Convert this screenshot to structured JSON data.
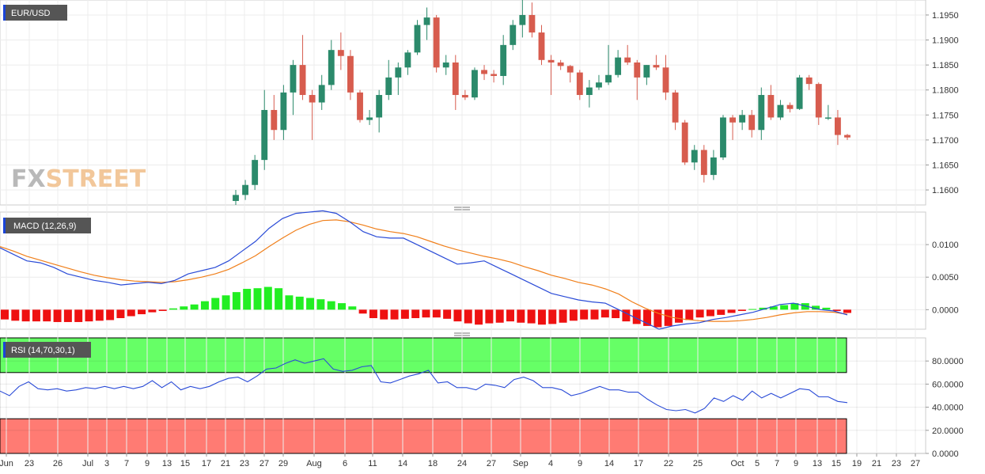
{
  "colors": {
    "up": "#2b8a6b",
    "down": "#d75c4e",
    "macd_line": "#2a4bd7",
    "signal_line": "#f07f1a",
    "hist_pos": "#22ee22",
    "hist_neg": "#ee1111",
    "rsi_line": "#2a4bd7",
    "rsi_overbought": "#66ff66",
    "rsi_oversold": "#ff7b73",
    "tag_bg": "#555555",
    "tag_accent": "#1a44d8"
  },
  "watermark": {
    "part1": "FX",
    "part2": "STREET"
  },
  "chart_data": [
    {
      "type": "candlestick",
      "title": "EUR/USD",
      "ylim": [
        1.157,
        1.198
      ],
      "yticks": [
        1.195,
        1.19,
        1.185,
        1.18,
        1.175,
        1.17,
        1.165,
        1.16
      ],
      "ytick_labels": [
        "1.1950",
        "1.1900",
        "1.1850",
        "1.1800",
        "1.1750",
        "1.1700",
        "1.1650",
        "1.1600"
      ],
      "grid": true,
      "ohlc": [
        [
          1.1578,
          1.16,
          1.157,
          1.159
        ],
        [
          1.159,
          1.162,
          1.158,
          1.161
        ],
        [
          1.161,
          1.167,
          1.16,
          1.166
        ],
        [
          1.166,
          1.18,
          1.164,
          1.176
        ],
        [
          1.176,
          1.179,
          1.17,
          1.172
        ],
        [
          1.172,
          1.181,
          1.17,
          1.1795
        ],
        [
          1.1795,
          1.186,
          1.175,
          1.185
        ],
        [
          1.185,
          1.191,
          1.178,
          1.179
        ],
        [
          1.179,
          1.18,
          1.17,
          1.1775
        ],
        [
          1.1775,
          1.183,
          1.176,
          1.181
        ],
        [
          1.181,
          1.19,
          1.18,
          1.188
        ],
        [
          1.188,
          1.1915,
          1.184,
          1.1868
        ],
        [
          1.1868,
          1.188,
          1.178,
          1.1795
        ],
        [
          1.1795,
          1.18,
          1.1735,
          1.174
        ],
        [
          1.174,
          1.176,
          1.173,
          1.1745
        ],
        [
          1.1745,
          1.18,
          1.1715,
          1.179
        ],
        [
          1.179,
          1.186,
          1.178,
          1.1825
        ],
        [
          1.1825,
          1.1855,
          1.179,
          1.1845
        ],
        [
          1.1845,
          1.188,
          1.183,
          1.1875
        ],
        [
          1.1875,
          1.194,
          1.187,
          1.193
        ],
        [
          1.193,
          1.1965,
          1.19,
          1.1945
        ],
        [
          1.1945,
          1.195,
          1.1835,
          1.1845
        ],
        [
          1.1845,
          1.187,
          1.183,
          1.1855
        ],
        [
          1.1855,
          1.187,
          1.176,
          1.179
        ],
        [
          1.179,
          1.18,
          1.178,
          1.1785
        ],
        [
          1.1785,
          1.1845,
          1.178,
          1.184
        ],
        [
          1.184,
          1.185,
          1.182,
          1.1832
        ],
        [
          1.1832,
          1.184,
          1.1815,
          1.1828
        ],
        [
          1.1828,
          1.191,
          1.181,
          1.189
        ],
        [
          1.189,
          1.194,
          1.188,
          1.193
        ],
        [
          1.193,
          1.198,
          1.1905,
          1.195
        ],
        [
          1.195,
          1.1975,
          1.1905,
          1.1915
        ],
        [
          1.1915,
          1.193,
          1.185,
          1.186
        ],
        [
          1.186,
          1.187,
          1.179,
          1.1855
        ],
        [
          1.1855,
          1.186,
          1.184,
          1.1848
        ],
        [
          1.1848,
          1.185,
          1.1815,
          1.1835
        ],
        [
          1.1835,
          1.184,
          1.178,
          1.179
        ],
        [
          1.179,
          1.182,
          1.1765,
          1.1805
        ],
        [
          1.1805,
          1.183,
          1.18,
          1.1815
        ],
        [
          1.1815,
          1.189,
          1.181,
          1.183
        ],
        [
          1.183,
          1.188,
          1.1825,
          1.1865
        ],
        [
          1.1865,
          1.189,
          1.185,
          1.1855
        ],
        [
          1.1855,
          1.186,
          1.178,
          1.1825
        ],
        [
          1.1825,
          1.185,
          1.181,
          1.185
        ],
        [
          1.185,
          1.187,
          1.184,
          1.1845
        ],
        [
          1.1845,
          1.187,
          1.178,
          1.1795
        ],
        [
          1.1795,
          1.18,
          1.172,
          1.1735
        ],
        [
          1.1735,
          1.174,
          1.165,
          1.1655
        ],
        [
          1.1655,
          1.169,
          1.164,
          1.168
        ],
        [
          1.168,
          1.169,
          1.1615,
          1.163
        ],
        [
          1.163,
          1.168,
          1.162,
          1.1665
        ],
        [
          1.1665,
          1.175,
          1.166,
          1.1745
        ],
        [
          1.1745,
          1.175,
          1.17,
          1.1735
        ],
        [
          1.1735,
          1.176,
          1.172,
          1.175
        ],
        [
          1.175,
          1.176,
          1.1705,
          1.172
        ],
        [
          1.172,
          1.1805,
          1.17,
          1.179
        ],
        [
          1.179,
          1.181,
          1.174,
          1.1745
        ],
        [
          1.1745,
          1.178,
          1.174,
          1.177
        ],
        [
          1.177,
          1.1775,
          1.1755,
          1.1762
        ],
        [
          1.1762,
          1.183,
          1.176,
          1.1825
        ],
        [
          1.1825,
          1.183,
          1.18,
          1.1812
        ],
        [
          1.1812,
          1.1815,
          1.173,
          1.1745
        ],
        [
          1.1745,
          1.177,
          1.174,
          1.1745
        ],
        [
          1.1745,
          1.176,
          1.169,
          1.171
        ],
        [
          1.171,
          1.1712,
          1.17,
          1.1705
        ]
      ]
    },
    {
      "type": "macd",
      "title": "MACD (12,26,9)",
      "ylim": [
        -0.003,
        0.015
      ],
      "yticks": [
        0.01,
        0.005,
        0.0
      ],
      "ytick_labels": [
        "0.0100",
        "0.0050",
        "0.0000"
      ],
      "grid": true,
      "macd_line": [
        0.0095,
        0.0085,
        0.0075,
        0.0072,
        0.0065,
        0.0055,
        0.005,
        0.0045,
        0.0042,
        0.0038,
        0.004,
        0.0042,
        0.004,
        0.0045,
        0.0055,
        0.006,
        0.0065,
        0.0075,
        0.009,
        0.0105,
        0.0125,
        0.014,
        0.0148,
        0.015,
        0.0152,
        0.0148,
        0.0135,
        0.012,
        0.0112,
        0.011,
        0.011,
        0.01,
        0.009,
        0.008,
        0.007,
        0.0072,
        0.0075,
        0.0065,
        0.0055,
        0.0045,
        0.0035,
        0.0025,
        0.002,
        0.0015,
        0.0012,
        0.001,
        0.0,
        -0.001,
        -0.002,
        -0.003,
        -0.0025,
        -0.0022,
        -0.002,
        -0.0015,
        -0.0012,
        -0.0008,
        -0.0004,
        0.0002,
        0.0008,
        0.001,
        0.0005,
        0.0,
        -0.0002,
        -0.0008
      ],
      "signal_line": [
        0.0097,
        0.009,
        0.0082,
        0.0076,
        0.007,
        0.0064,
        0.0058,
        0.0053,
        0.0049,
        0.0046,
        0.0044,
        0.0043,
        0.0042,
        0.0043,
        0.0046,
        0.005,
        0.0055,
        0.0062,
        0.0072,
        0.0083,
        0.0097,
        0.011,
        0.0122,
        0.0131,
        0.0137,
        0.0138,
        0.0135,
        0.013,
        0.0124,
        0.012,
        0.0117,
        0.0112,
        0.0105,
        0.0098,
        0.0092,
        0.0087,
        0.0082,
        0.0078,
        0.0073,
        0.0066,
        0.006,
        0.0053,
        0.0048,
        0.0042,
        0.0038,
        0.0032,
        0.0024,
        0.0012,
        0.0002,
        -0.0006,
        -0.0012,
        -0.0015,
        -0.0017,
        -0.0018,
        -0.0018,
        -0.0017,
        -0.0015,
        -0.0012,
        -0.0008,
        -0.0005,
        -0.0003,
        -0.0003,
        -0.0004,
        -0.0007
      ],
      "histogram": [
        -0.0015,
        -0.0017,
        -0.0018,
        -0.0018,
        -0.0018,
        -0.0019,
        -0.0019,
        -0.0019,
        -0.0018,
        -0.0017,
        -0.0016,
        -0.0013,
        -0.001,
        -0.0007,
        -0.0004,
        -0.0002,
        0.0002,
        0.0005,
        0.0008,
        0.0013,
        0.0018,
        0.0022,
        0.0027,
        0.0032,
        0.0033,
        0.0035,
        0.0033,
        0.0022,
        0.002,
        0.0018,
        0.0016,
        0.0013,
        0.001,
        0.0005,
        -0.0006,
        -0.0013,
        -0.0015,
        -0.0015,
        -0.0014,
        -0.0013,
        -0.0012,
        -0.0012,
        -0.0014,
        -0.0018,
        -0.0021,
        -0.0023,
        -0.0021,
        -0.002,
        -0.0018,
        -0.002,
        -0.0021,
        -0.0023,
        -0.0022,
        -0.002,
        -0.0017,
        -0.0015,
        -0.0015,
        -0.0012,
        -0.0013,
        -0.0018,
        -0.0022,
        -0.0025,
        -0.0027,
        -0.0025,
        -0.002,
        -0.0016,
        -0.0012,
        -0.001,
        -0.0008,
        -0.0005,
        -0.0002,
        0.0001,
        0.0003,
        0.0005,
        0.0007,
        0.001,
        0.001,
        0.0006,
        0.0003,
        -0.0002,
        -0.0005
      ]
    },
    {
      "type": "rsi",
      "title": "RSI (14,70,30,1)",
      "ylim": [
        0,
        100
      ],
      "overbought": 70,
      "oversold": 30,
      "yticks": [
        80,
        60,
        40,
        20,
        0
      ],
      "ytick_labels": [
        "80.0000",
        "60.0000",
        "40.0000",
        "20.0000",
        "0.0000"
      ],
      "grid": true,
      "values": [
        54,
        50,
        58,
        62,
        56,
        55,
        56,
        54,
        55,
        57,
        56,
        58,
        56,
        58,
        56,
        58,
        63,
        57,
        62,
        55,
        58,
        56,
        58,
        62,
        65,
        66,
        62,
        67,
        73,
        74,
        78,
        81,
        78,
        80,
        82,
        73,
        71,
        72,
        75,
        76,
        62,
        61,
        64,
        67,
        69,
        72,
        61,
        62,
        57,
        57,
        55,
        60,
        59,
        57,
        64,
        66,
        63,
        57,
        57,
        55,
        50,
        52,
        55,
        58,
        55,
        55,
        53,
        53,
        47,
        42,
        38,
        37,
        38,
        35,
        39,
        48,
        45,
        50,
        46,
        54,
        48,
        52,
        48,
        52,
        56,
        55,
        49,
        49,
        45,
        44
      ]
    }
  ],
  "x_axis": {
    "tick_labels": [
      "Jun",
      "23",
      "26",
      "Jul",
      "3",
      "7",
      "9",
      "13",
      "15",
      "17",
      "21",
      "23",
      "27",
      "29",
      "Aug",
      "6",
      "11",
      "14",
      "18",
      "24",
      "27",
      "Sep",
      "4",
      "9",
      "14",
      "17",
      "22",
      "25",
      "Oct",
      "5",
      "7",
      "9",
      "13",
      "15",
      "19",
      "21",
      "23",
      "27"
    ]
  }
}
